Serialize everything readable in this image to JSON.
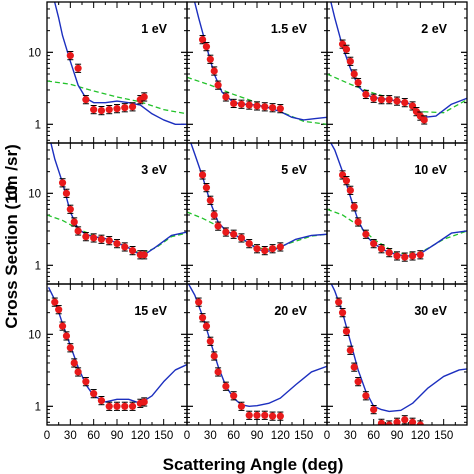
{
  "chart_data": {
    "type": "scatter",
    "xlabel": "Scattering Angle (deg)",
    "ylabel": "Cross Section (10",
    "ylabel_unit_suffix": "cm /sr)",
    "x_ticks": [
      "0",
      "30",
      "60",
      "90",
      "120",
      "150"
    ],
    "y_ticks": [
      "1",
      "10"
    ],
    "y_scale": "log",
    "xlim": [
      0,
      180
    ],
    "ylim": [
      0.55,
      50
    ],
    "grid": false,
    "legend": "none",
    "colors": {
      "points": "#e8191a",
      "solid_line": "#1c2fbf",
      "dashed_line": "#22c22a"
    },
    "panels": [
      {
        "label": "1 eV",
        "points": [
          [
            30,
            9.0
          ],
          [
            40,
            6.0
          ],
          [
            50,
            2.2
          ],
          [
            60,
            1.6
          ],
          [
            70,
            1.55
          ],
          [
            80,
            1.6
          ],
          [
            90,
            1.65
          ],
          [
            100,
            1.7
          ],
          [
            110,
            1.75
          ],
          [
            120,
            2.2
          ],
          [
            125,
            2.4
          ]
        ],
        "solid": [
          [
            8,
            60
          ],
          [
            15,
            30
          ],
          [
            20,
            17
          ],
          [
            30,
            7.5
          ],
          [
            40,
            3.5
          ],
          [
            50,
            2.3
          ],
          [
            60,
            2.0
          ],
          [
            75,
            2.0
          ],
          [
            90,
            2.1
          ],
          [
            105,
            2.0
          ],
          [
            120,
            1.85
          ],
          [
            135,
            1.4
          ],
          [
            150,
            1.15
          ],
          [
            165,
            1.0
          ],
          [
            180,
            1.0
          ]
        ],
        "dashed": [
          [
            0,
            4.0
          ],
          [
            30,
            3.6
          ],
          [
            60,
            2.9
          ],
          [
            90,
            2.4
          ],
          [
            120,
            2.05
          ],
          [
            150,
            1.6
          ],
          [
            180,
            1.4
          ]
        ]
      },
      {
        "label": "1.5 eV",
        "points": [
          [
            20,
            15
          ],
          [
            25,
            12
          ],
          [
            30,
            8.0
          ],
          [
            35,
            5.5
          ],
          [
            40,
            3.5
          ],
          [
            50,
            2.4
          ],
          [
            60,
            1.95
          ],
          [
            70,
            1.9
          ],
          [
            80,
            1.85
          ],
          [
            90,
            1.8
          ],
          [
            100,
            1.75
          ],
          [
            110,
            1.7
          ],
          [
            120,
            1.65
          ]
        ],
        "solid": [
          [
            8,
            60
          ],
          [
            15,
            30
          ],
          [
            25,
            12
          ],
          [
            35,
            5.0
          ],
          [
            45,
            2.8
          ],
          [
            60,
            2.0
          ],
          [
            75,
            1.9
          ],
          [
            90,
            1.85
          ],
          [
            105,
            1.7
          ],
          [
            120,
            1.5
          ],
          [
            135,
            1.25
          ],
          [
            150,
            1.15
          ],
          [
            165,
            1.2
          ],
          [
            180,
            1.25
          ]
        ],
        "dashed": [
          [
            0,
            4.5
          ],
          [
            30,
            3.5
          ],
          [
            60,
            2.6
          ],
          [
            90,
            2.0
          ],
          [
            120,
            1.5
          ],
          [
            150,
            1.1
          ],
          [
            180,
            1.0
          ]
        ]
      },
      {
        "label": "2 eV",
        "points": [
          [
            20,
            13
          ],
          [
            25,
            11
          ],
          [
            30,
            7.5
          ],
          [
            35,
            5.0
          ],
          [
            40,
            3.8
          ],
          [
            50,
            2.6
          ],
          [
            60,
            2.3
          ],
          [
            70,
            2.2
          ],
          [
            80,
            2.2
          ],
          [
            90,
            2.1
          ],
          [
            100,
            2.0
          ],
          [
            110,
            1.8
          ],
          [
            115,
            1.5
          ],
          [
            120,
            1.3
          ],
          [
            125,
            1.15
          ]
        ],
        "solid": [
          [
            5,
            50
          ],
          [
            10,
            30
          ],
          [
            20,
            12
          ],
          [
            30,
            6.0
          ],
          [
            40,
            3.4
          ],
          [
            50,
            2.6
          ],
          [
            60,
            2.35
          ],
          [
            75,
            2.25
          ],
          [
            90,
            2.1
          ],
          [
            105,
            1.95
          ],
          [
            115,
            1.6
          ],
          [
            125,
            1.25
          ],
          [
            140,
            1.3
          ],
          [
            160,
            1.9
          ],
          [
            180,
            2.3
          ]
        ],
        "dashed": [
          [
            0,
            5.0
          ],
          [
            30,
            3.6
          ],
          [
            60,
            2.7
          ],
          [
            90,
            2.2
          ],
          [
            120,
            1.5
          ],
          [
            150,
            1.45
          ],
          [
            180,
            2.2
          ]
        ]
      },
      {
        "label": "3 eV",
        "points": [
          [
            20,
            14
          ],
          [
            25,
            10
          ],
          [
            30,
            6.0
          ],
          [
            35,
            4.0
          ],
          [
            40,
            3.0
          ],
          [
            50,
            2.5
          ],
          [
            60,
            2.4
          ],
          [
            70,
            2.3
          ],
          [
            80,
            2.2
          ],
          [
            90,
            2.0
          ],
          [
            100,
            1.8
          ],
          [
            110,
            1.6
          ],
          [
            120,
            1.4
          ],
          [
            125,
            1.4
          ]
        ],
        "solid": [
          [
            5,
            50
          ],
          [
            10,
            30
          ],
          [
            20,
            14
          ],
          [
            30,
            5.5
          ],
          [
            40,
            3.2
          ],
          [
            50,
            2.7
          ],
          [
            60,
            2.5
          ],
          [
            75,
            2.35
          ],
          [
            90,
            2.05
          ],
          [
            105,
            1.75
          ],
          [
            115,
            1.5
          ],
          [
            125,
            1.4
          ],
          [
            140,
            1.8
          ],
          [
            160,
            2.6
          ],
          [
            180,
            2.9
          ]
        ],
        "dashed": [
          [
            0,
            5.0
          ],
          [
            20,
            4.2
          ],
          [
            40,
            3.2
          ],
          [
            60,
            2.6
          ],
          [
            90,
            2.1
          ],
          [
            120,
            1.45
          ],
          [
            140,
            1.75
          ],
          [
            160,
            2.5
          ],
          [
            180,
            2.8
          ]
        ]
      },
      {
        "label": "5 eV",
        "points": [
          [
            20,
            18
          ],
          [
            25,
            12
          ],
          [
            30,
            8.0
          ],
          [
            35,
            5.0
          ],
          [
            40,
            3.5
          ],
          [
            50,
            2.9
          ],
          [
            60,
            2.7
          ],
          [
            70,
            2.4
          ],
          [
            80,
            2.0
          ],
          [
            90,
            1.7
          ],
          [
            100,
            1.6
          ],
          [
            110,
            1.7
          ],
          [
            120,
            1.8
          ]
        ],
        "solid": [
          [
            5,
            50
          ],
          [
            10,
            35
          ],
          [
            20,
            17
          ],
          [
            30,
            7.5
          ],
          [
            40,
            4.0
          ],
          [
            50,
            3.0
          ],
          [
            60,
            2.7
          ],
          [
            75,
            2.2
          ],
          [
            90,
            1.7
          ],
          [
            100,
            1.55
          ],
          [
            110,
            1.6
          ],
          [
            125,
            1.9
          ],
          [
            140,
            2.3
          ],
          [
            160,
            2.6
          ],
          [
            180,
            2.7
          ]
        ],
        "dashed": [
          [
            0,
            5.5
          ],
          [
            20,
            4.5
          ],
          [
            40,
            3.5
          ],
          [
            60,
            2.7
          ],
          [
            90,
            1.75
          ],
          [
            110,
            1.65
          ],
          [
            130,
            2.0
          ],
          [
            160,
            2.55
          ],
          [
            180,
            2.7
          ]
        ]
      },
      {
        "label": "10 eV",
        "points": [
          [
            20,
            18
          ],
          [
            25,
            15
          ],
          [
            30,
            11
          ],
          [
            35,
            6.5
          ],
          [
            40,
            4.0
          ],
          [
            50,
            2.7
          ],
          [
            60,
            2.0
          ],
          [
            70,
            1.7
          ],
          [
            80,
            1.5
          ],
          [
            90,
            1.35
          ],
          [
            100,
            1.3
          ],
          [
            110,
            1.35
          ],
          [
            120,
            1.4
          ]
        ],
        "solid": [
          [
            5,
            50
          ],
          [
            10,
            40
          ],
          [
            20,
            20
          ],
          [
            30,
            9.0
          ],
          [
            40,
            4.2
          ],
          [
            50,
            2.6
          ],
          [
            60,
            2.0
          ],
          [
            75,
            1.6
          ],
          [
            90,
            1.4
          ],
          [
            105,
            1.35
          ],
          [
            120,
            1.45
          ],
          [
            140,
            2.0
          ],
          [
            160,
            2.8
          ],
          [
            180,
            3.0
          ]
        ],
        "dashed": [
          [
            0,
            6.0
          ],
          [
            20,
            5.0
          ],
          [
            40,
            3.6
          ],
          [
            60,
            2.3
          ],
          [
            90,
            1.45
          ],
          [
            120,
            1.5
          ],
          [
            150,
            2.3
          ],
          [
            180,
            3.0
          ]
        ]
      },
      {
        "label": "15 eV",
        "points": [
          [
            10,
            28
          ],
          [
            15,
            22
          ],
          [
            20,
            13
          ],
          [
            25,
            9.5
          ],
          [
            30,
            6.5
          ],
          [
            35,
            4.0
          ],
          [
            40,
            3.0
          ],
          [
            50,
            2.2
          ],
          [
            60,
            1.5
          ],
          [
            70,
            1.2
          ],
          [
            80,
            1.0
          ],
          [
            90,
            1.0
          ],
          [
            100,
            1.0
          ],
          [
            110,
            1.0
          ],
          [
            120,
            1.1
          ],
          [
            125,
            1.15
          ]
        ],
        "solid": [
          [
            2,
            45
          ],
          [
            10,
            30
          ],
          [
            20,
            14
          ],
          [
            30,
            7.0
          ],
          [
            40,
            3.5
          ],
          [
            50,
            2.0
          ],
          [
            60,
            1.4
          ],
          [
            75,
            1.15
          ],
          [
            90,
            1.25
          ],
          [
            105,
            1.25
          ],
          [
            120,
            1.1
          ],
          [
            135,
            1.4
          ],
          [
            150,
            2.2
          ],
          [
            165,
            3.2
          ],
          [
            180,
            3.8
          ]
        ],
        "dashed": []
      },
      {
        "label": "20 eV",
        "points": [
          [
            15,
            28
          ],
          [
            20,
            17
          ],
          [
            25,
            13
          ],
          [
            30,
            8.0
          ],
          [
            35,
            5.0
          ],
          [
            40,
            3.0
          ],
          [
            50,
            1.9
          ],
          [
            60,
            1.4
          ],
          [
            70,
            1.0
          ],
          [
            80,
            0.75
          ],
          [
            90,
            0.75
          ],
          [
            100,
            0.75
          ],
          [
            110,
            0.73
          ],
          [
            120,
            0.73
          ]
        ],
        "solid": [
          [
            2,
            50
          ],
          [
            10,
            35
          ],
          [
            20,
            18
          ],
          [
            30,
            8.0
          ],
          [
            40,
            3.6
          ],
          [
            50,
            1.9
          ],
          [
            60,
            1.3
          ],
          [
            70,
            1.05
          ],
          [
            80,
            1.0
          ],
          [
            90,
            1.02
          ],
          [
            105,
            1.1
          ],
          [
            120,
            1.3
          ],
          [
            140,
            2.0
          ],
          [
            160,
            3.0
          ],
          [
            180,
            3.6
          ]
        ],
        "dashed": []
      },
      {
        "label": "30 eV",
        "points": [
          [
            15,
            28
          ],
          [
            20,
            20
          ],
          [
            25,
            11
          ],
          [
            30,
            6.0
          ],
          [
            35,
            3.5
          ],
          [
            40,
            2.2
          ],
          [
            50,
            1.4
          ],
          [
            60,
            0.9
          ],
          [
            70,
            0.58
          ],
          [
            80,
            0.55
          ],
          [
            90,
            0.6
          ],
          [
            100,
            0.65
          ],
          [
            110,
            0.6
          ],
          [
            120,
            0.55
          ]
        ],
        "solid": [
          [
            2,
            60
          ],
          [
            10,
            40
          ],
          [
            20,
            20
          ],
          [
            30,
            8.0
          ],
          [
            40,
            3.2
          ],
          [
            50,
            1.6
          ],
          [
            60,
            1.0
          ],
          [
            70,
            0.9
          ],
          [
            80,
            0.85
          ],
          [
            95,
            0.88
          ],
          [
            110,
            1.1
          ],
          [
            130,
            1.8
          ],
          [
            150,
            2.6
          ],
          [
            170,
            3.2
          ],
          [
            180,
            3.3
          ]
        ],
        "dashed": []
      }
    ]
  }
}
